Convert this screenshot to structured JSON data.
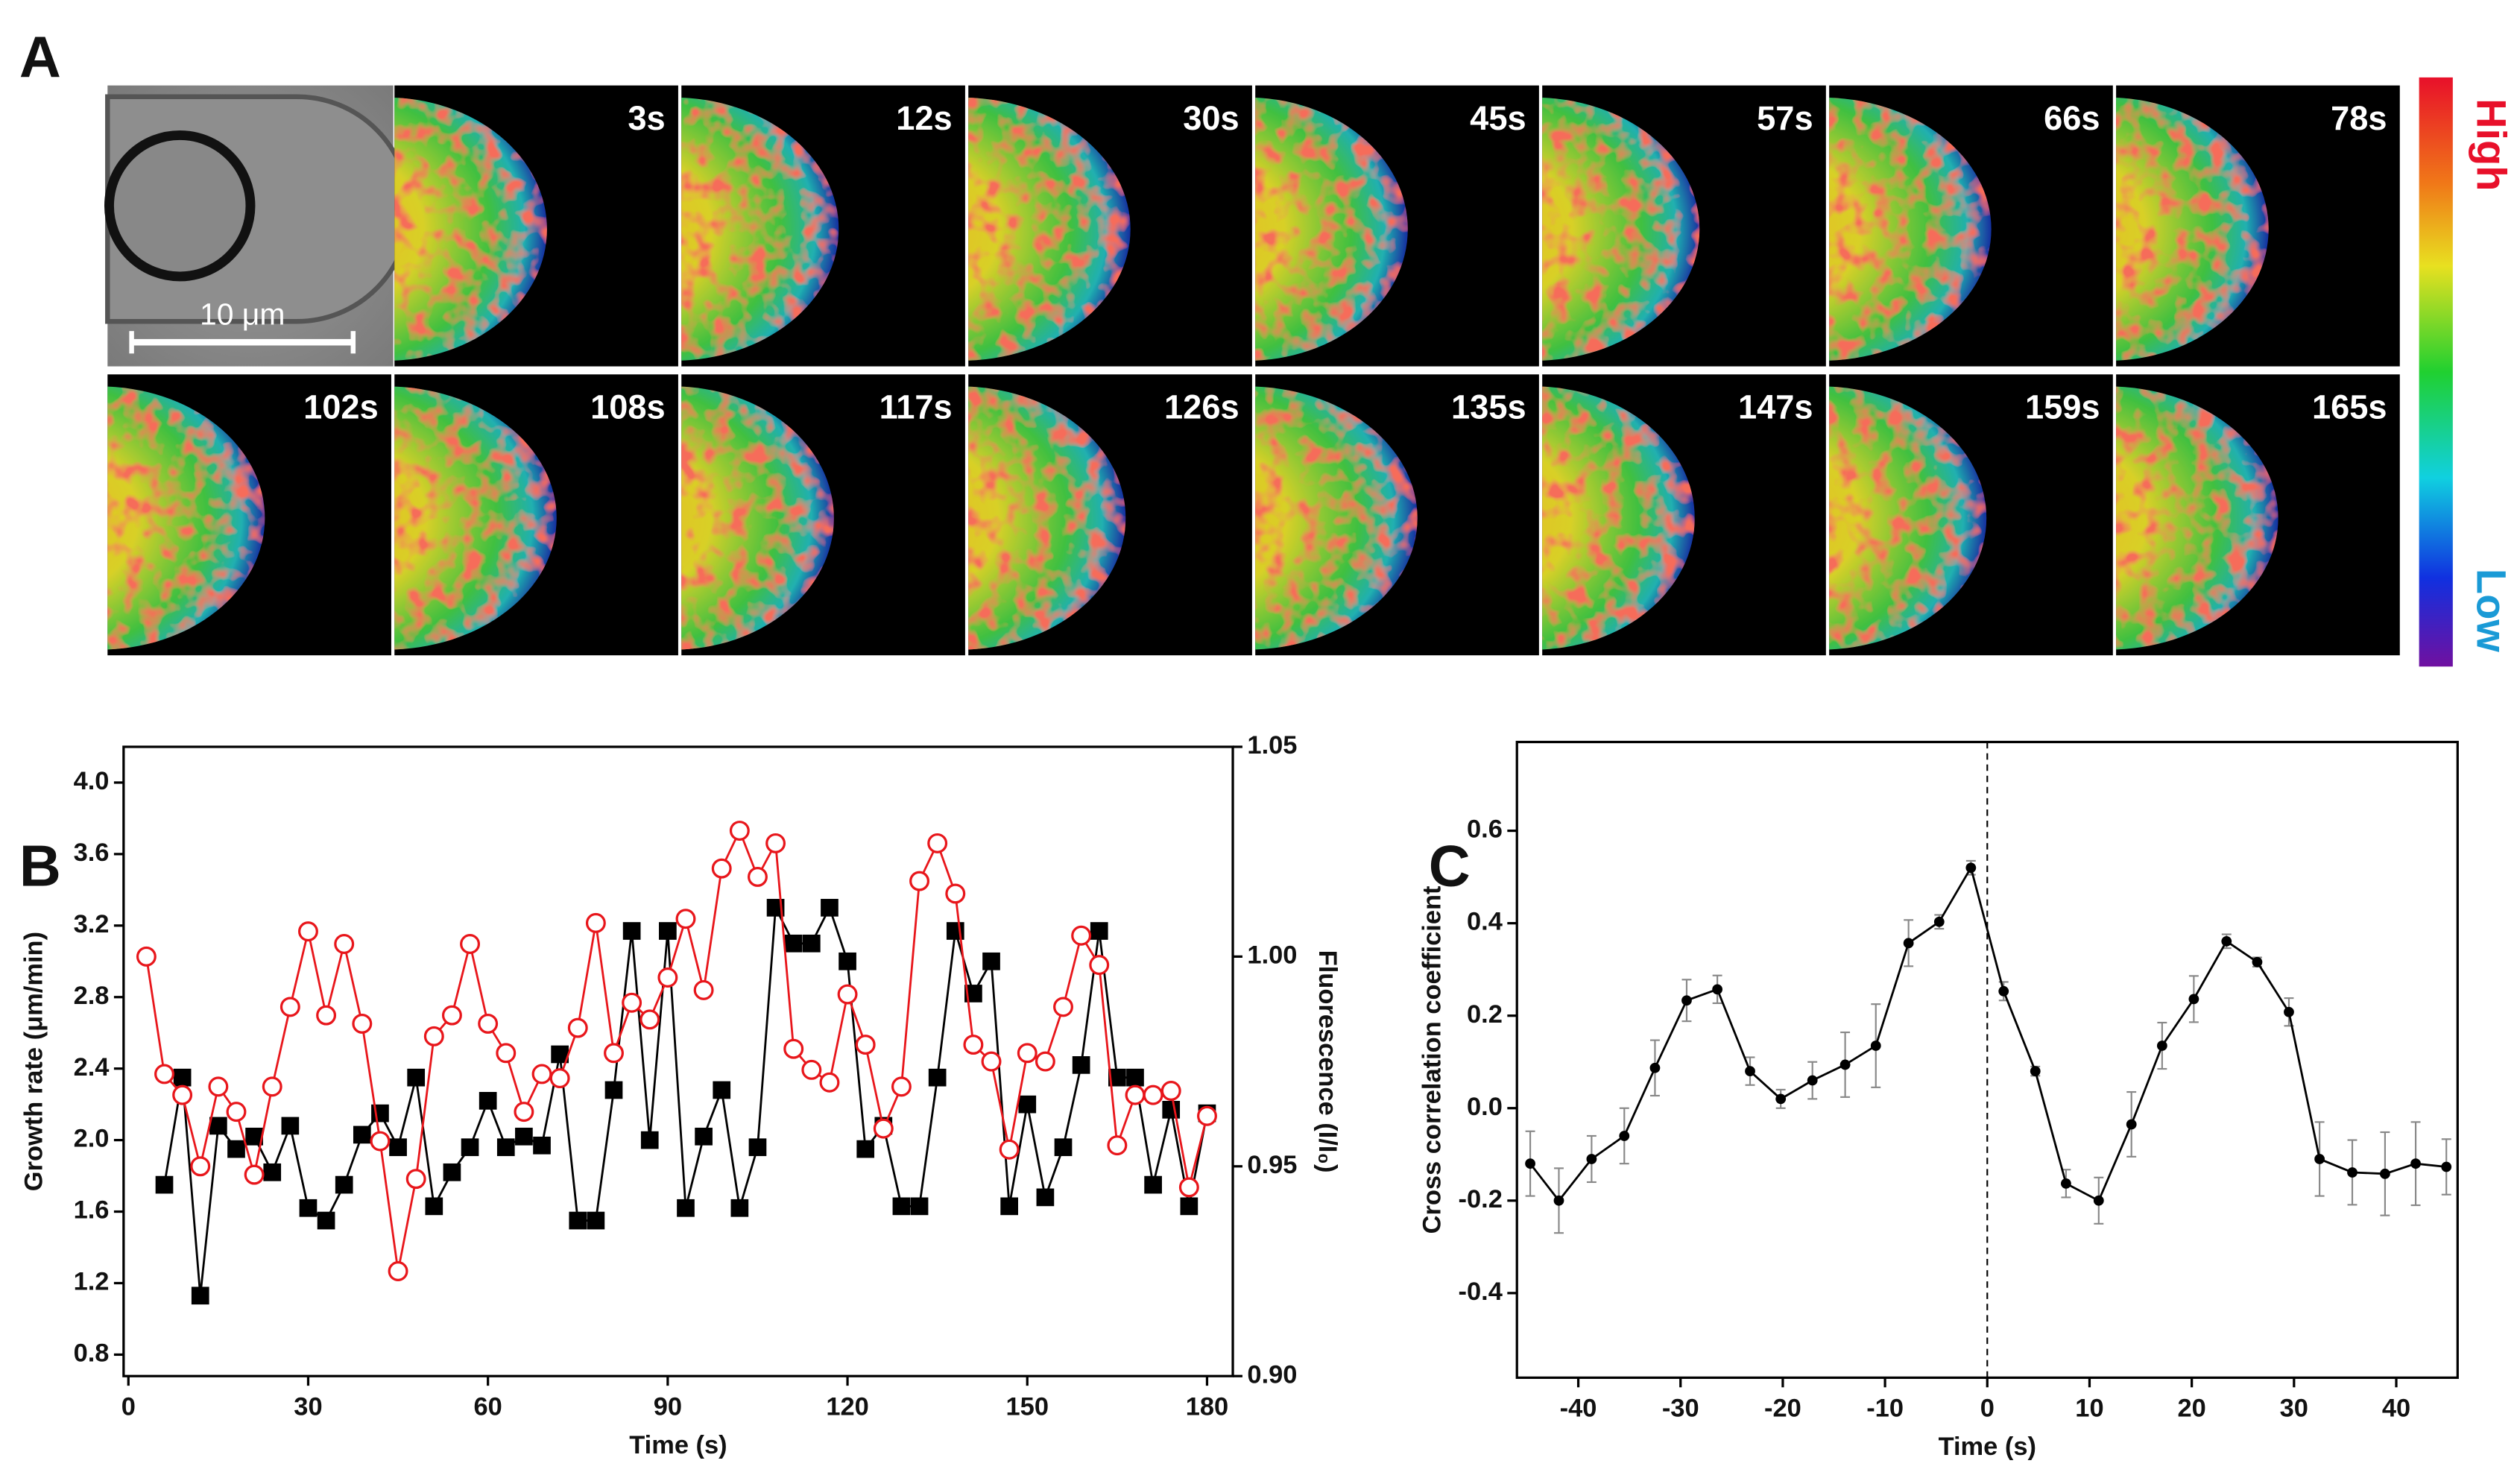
{
  "panels": [
    "A",
    "B",
    "C"
  ],
  "panel_a": {
    "frames": [
      "3s",
      "12s",
      "30s",
      "45s",
      "57s",
      "66s",
      "78s",
      "102s",
      "108s",
      "117s",
      "126s",
      "135s",
      "147s",
      "159s",
      "165s"
    ],
    "scale_bar": "10 μm",
    "colorbar": {
      "high": "High",
      "low": "Low"
    }
  },
  "chart_data": [
    {
      "type": "line",
      "x_label": "Time (s)",
      "y_label": "Growth rate (μm/min)",
      "y2_label": "Fluorescence (I/I₀)",
      "x": [
        3,
        6,
        9,
        12,
        15,
        18,
        21,
        24,
        27,
        30,
        33,
        36,
        39,
        42,
        45,
        48,
        51,
        54,
        57,
        60,
        63,
        66,
        69,
        72,
        75,
        78,
        81,
        84,
        87,
        90,
        93,
        96,
        99,
        102,
        105,
        108,
        111,
        114,
        117,
        120,
        123,
        126,
        129,
        132,
        135,
        138,
        141,
        144,
        147,
        150,
        153,
        156,
        159,
        162,
        165,
        168,
        171,
        174,
        177,
        180
      ],
      "xlim": [
        -0.8,
        184.3
      ],
      "xticks": [
        0,
        30,
        60,
        90,
        120,
        150,
        180
      ],
      "ylim": [
        0.68,
        4.2
      ],
      "yticks": [
        0.8,
        1.2,
        1.6,
        {
          "value": 2,
          "label": "2.0"
        },
        2.4,
        2.8,
        3.2,
        3.6,
        {
          "value": 4,
          "label": "4.0"
        }
      ],
      "y2lim": [
        0.9,
        1.05
      ],
      "y2ticks": [
        {
          "value": 0.9,
          "label": "0.90"
        },
        0.95,
        {
          "value": 1,
          "label": "1.00"
        },
        1.05
      ],
      "series": [
        {
          "color": "#000000",
          "marker": "square",
          "values": [
            null,
            1.75,
            2.35,
            1.13,
            2.08,
            1.95,
            2.02,
            1.82,
            2.08,
            1.62,
            1.55,
            1.75,
            2.03,
            2.15,
            1.96,
            2.35,
            1.63,
            1.82,
            1.96,
            2.22,
            1.96,
            2.02,
            1.97,
            2.48,
            1.55,
            1.55,
            2.28,
            3.17,
            2.0,
            3.17,
            1.62,
            2.02,
            2.28,
            1.62,
            1.96,
            3.3,
            3.1,
            3.1,
            3.3,
            3.0,
            1.95,
            2.08,
            1.63,
            1.63,
            2.35,
            3.17,
            2.82,
            3.0,
            1.63,
            2.2,
            1.68,
            1.96,
            2.42,
            3.17,
            2.35,
            2.35,
            1.75,
            2.17,
            1.63,
            2.15
          ]
        },
        {
          "color": "#e8161b",
          "marker": "circle",
          "axis": "y2",
          "values": [
            1.0,
            0.972,
            0.967,
            0.95,
            0.969,
            0.963,
            0.948,
            0.969,
            0.988,
            1.006,
            0.986,
            1.003,
            0.984,
            0.956,
            0.925,
            0.947,
            0.981,
            0.986,
            1.003,
            0.984,
            0.977,
            0.963,
            0.972,
            0.971,
            0.983,
            1.008,
            0.977,
            0.989,
            0.985,
            0.995,
            1.009,
            0.992,
            1.021,
            1.03,
            1.019,
            1.027,
            0.978,
            0.973,
            0.97,
            0.991,
            0.979,
            0.959,
            0.969,
            1.018,
            1.027,
            1.015,
            0.979,
            0.975,
            0.954,
            0.977,
            0.975,
            0.988,
            1.005,
            0.998,
            0.955,
            0.967,
            0.967,
            0.968,
            0.945,
            0.962
          ]
        }
      ]
    },
    {
      "type": "errorbar",
      "x_label": "Time (s)",
      "y_label": "Cross correlation coefficient",
      "x": [
        -44.7,
        -41.9,
        -38.7,
        -35.5,
        -32.5,
        -29.4,
        -26.4,
        -23.2,
        -20.2,
        -17.1,
        -13.9,
        -10.9,
        -7.7,
        -4.7,
        -1.6,
        1.6,
        4.7,
        7.7,
        10.9,
        14.1,
        17.1,
        20.2,
        23.4,
        26.4,
        29.5,
        32.5,
        35.7,
        38.9,
        41.9,
        44.9
      ],
      "xlim": [
        -46,
        46
      ],
      "xticks": [
        -40,
        -30,
        -20,
        -10,
        0,
        10,
        20,
        30,
        40
      ],
      "ylim": [
        -0.583,
        0.792
      ],
      "yticks": [
        -0.4,
        -0.2,
        {
          "value": 0,
          "label": "0.0"
        },
        0.2,
        0.4,
        0.6
      ],
      "vline": 0,
      "series": [
        {
          "color": "#000000",
          "marker": "dot",
          "values": [
            -0.12,
            -0.2,
            -0.11,
            -0.06,
            0.087,
            0.233,
            0.257,
            0.08,
            0.02,
            0.06,
            0.094,
            0.135,
            0.357,
            0.403,
            0.52,
            0.253,
            0.08,
            -0.163,
            -0.2,
            -0.035,
            0.135,
            0.236,
            0.361,
            0.316,
            0.208,
            -0.11,
            -0.139,
            -0.142,
            -0.12,
            -0.127
          ],
          "errors": [
            0.07,
            0.07,
            0.05,
            0.06,
            0.06,
            0.045,
            0.03,
            0.03,
            0.02,
            0.04,
            0.07,
            0.09,
            0.05,
            0.015,
            0.015,
            0.02,
            0.01,
            0.03,
            0.05,
            0.07,
            0.05,
            0.05,
            0.015,
            0.01,
            0.03,
            0.08,
            0.07,
            0.09,
            0.09,
            0.06
          ]
        }
      ]
    }
  ]
}
